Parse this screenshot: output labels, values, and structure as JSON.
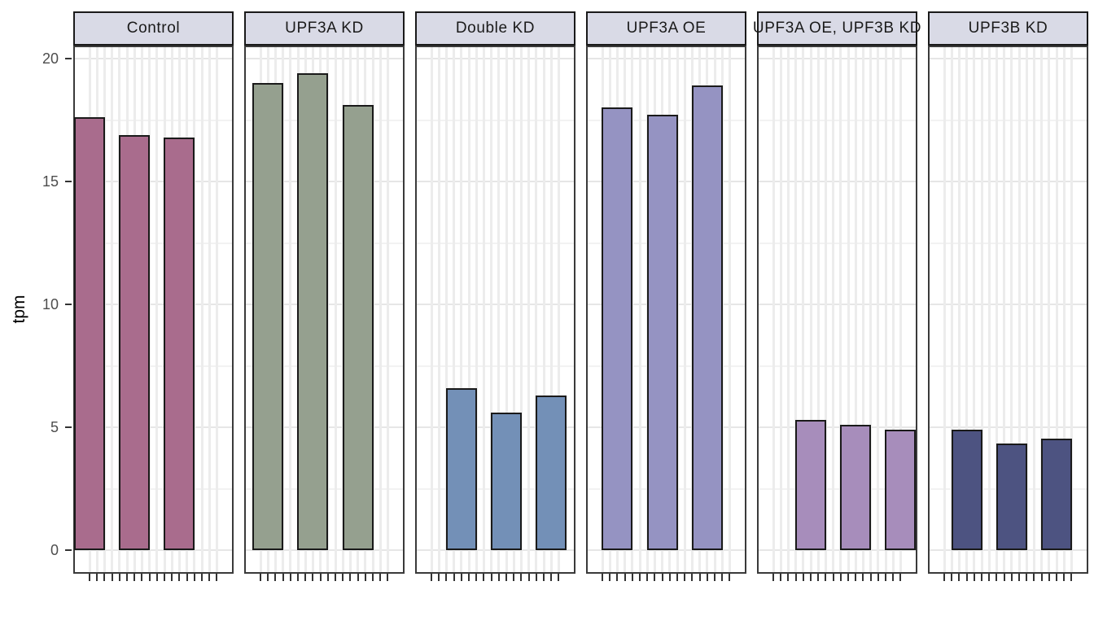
{
  "chart_data": {
    "type": "bar",
    "title": "",
    "ylabel": "tpm",
    "xlabel": "",
    "legend_position": "none",
    "grid": "on",
    "y_axis": {
      "ticks": [
        0,
        5,
        10,
        15,
        20
      ],
      "minor_gridlines": [
        2.5,
        7.5,
        12.5,
        17.5
      ],
      "range": [
        -1,
        20.5
      ]
    },
    "x_axis": {
      "n_ticks_per_facet": 18,
      "tick_labels_visible": false
    },
    "facets": [
      {
        "label": "Control",
        "color": "#a96c8d",
        "slot": 1,
        "values": [
          17.6,
          16.9,
          16.8
        ]
      },
      {
        "label": "UPF3A KD",
        "color": "#95a08f",
        "slot": 2,
        "values": [
          19.0,
          19.4,
          18.1
        ]
      },
      {
        "label": "Double KD",
        "color": "#7390b7",
        "slot": 5,
        "values": [
          6.6,
          5.6,
          6.3
        ]
      },
      {
        "label": "UPF3A OE",
        "color": "#9593c2",
        "slot": 3,
        "values": [
          18.0,
          17.7,
          18.9
        ]
      },
      {
        "label": "UPF3A OE, UPF3B KD",
        "color": "#a78dbb",
        "slot": 6,
        "values": [
          5.3,
          5.1,
          4.9
        ]
      },
      {
        "label": "UPF3B KD",
        "color": "#4d5381",
        "slot": 4,
        "values": [
          4.9,
          4.35,
          4.55
        ]
      }
    ]
  },
  "style": {
    "background": "#ffffff",
    "panel_bg": "#ffffff",
    "panel_border": "#3a3a3a",
    "strip_fill": "#d9dae6",
    "strip_border": "#1a1a1a",
    "strip_text": "#1a1a1a",
    "grid_major": "#e6e6e6",
    "grid_minor": "#f2f2f2",
    "grid_vertical": "#ececec",
    "bar_stroke": "#1a1a1a",
    "axis_text": "#4d4d4d",
    "axis_title": "#000000",
    "tick_color": "#333333"
  }
}
